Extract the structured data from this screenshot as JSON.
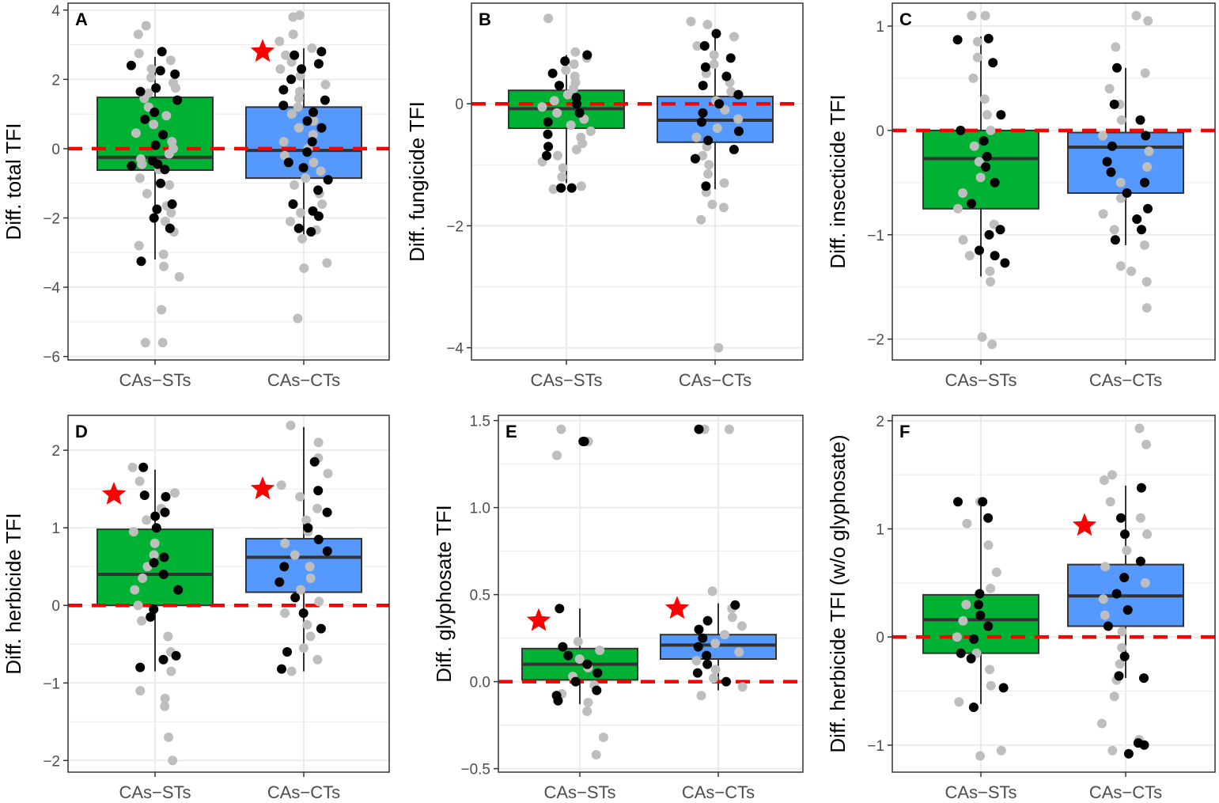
{
  "colors": {
    "green": "#00B233",
    "blue": "#5599FF",
    "zero_line": "#FF0000",
    "star": "#FF0000",
    "grey_point": "#BEBEBE",
    "black_point": "#000000",
    "grid": "#EBEBEB",
    "box_outline": "#333333"
  },
  "chart_data": [
    {
      "panel": "A",
      "type": "box",
      "ylabel": "Diff. total TFI",
      "categories": [
        "CAs−STs",
        "CAs−CTs"
      ],
      "ylim": [
        -6.1,
        4.2
      ],
      "yticks": [
        -6,
        -4,
        -2,
        0,
        2,
        4
      ],
      "yticklabels": [
        "−6",
        "−4",
        "−2",
        "0",
        "2",
        "4"
      ],
      "boxes": [
        {
          "name": "CAs−STs",
          "color": "green",
          "q1": -0.62,
          "median": -0.25,
          "q3": 1.48,
          "whisker_low": -3.2,
          "whisker_high": 2.65,
          "star": false
        },
        {
          "name": "CAs−CTs",
          "color": "blue",
          "q1": -0.85,
          "median": -0.05,
          "q3": 1.2,
          "whisker_low": -2.5,
          "whisker_high": 2.9,
          "star": true,
          "star_y": 2.8
        }
      ],
      "points_grey": [
        [
          [
            -5.6,
            -5.6,
            -4.65,
            -3.7,
            -3.4,
            -3.05,
            -2.8,
            -2.4,
            -2.1,
            -1.85,
            -1.65,
            -1.3,
            -1.05,
            -0.85,
            -0.6,
            -0.45,
            -0.3,
            -0.15,
            0.0,
            0.2,
            0.45,
            0.7,
            0.95,
            1.2,
            1.45,
            1.6,
            1.75,
            1.9,
            2.05,
            2.3,
            2.55,
            2.75,
            3.3,
            3.55
          ]
        ],
        [
          [
            -4.9,
            -3.45,
            -3.3,
            -2.6,
            -2.35,
            -2.1,
            -1.85,
            -1.6,
            -1.3,
            -1.05,
            -0.85,
            -0.65,
            -0.4,
            -0.2,
            0.0,
            0.2,
            0.4,
            0.6,
            0.8,
            1.0,
            1.2,
            1.45,
            1.65,
            1.85,
            2.1,
            2.3,
            2.5,
            2.7,
            2.9,
            3.1,
            3.3,
            3.8,
            3.85
          ]
        ]
      ],
      "points_black": [
        [
          [
            -3.25,
            -2.3,
            -2.0,
            -1.75,
            -1.6,
            -1.0,
            -0.6,
            -0.5,
            -0.45,
            -0.35,
            0.1,
            0.4,
            0.85,
            1.05,
            1.4,
            1.65,
            1.75,
            2.15,
            2.25,
            2.4,
            2.8
          ]
        ],
        [
          [
            -2.4,
            -2.3,
            -1.95,
            -1.8,
            -1.6,
            -1.2,
            -0.9,
            -0.55,
            -0.4,
            -0.1,
            0.2,
            0.6,
            0.8,
            1.05,
            1.25,
            1.4,
            1.7,
            2.0,
            2.3,
            2.45,
            2.7,
            2.8
          ]
        ]
      ]
    },
    {
      "panel": "B",
      "type": "box",
      "ylabel": "Diff. fungicide TFI",
      "categories": [
        "CAs−STs",
        "CAs−CTs"
      ],
      "ylim": [
        -4.2,
        1.65
      ],
      "yticks": [
        -4,
        -2,
        0
      ],
      "yticklabels": [
        "−4",
        "−2",
        "0"
      ],
      "boxes": [
        {
          "name": "CAs−STs",
          "color": "green",
          "q1": -0.4,
          "median": -0.08,
          "q3": 0.22,
          "whisker_low": -1.3,
          "whisker_high": 0.8,
          "star": false
        },
        {
          "name": "CAs−CTs",
          "color": "blue",
          "q1": -0.63,
          "median": -0.27,
          "q3": 0.12,
          "whisker_low": -1.4,
          "whisker_high": 1.1,
          "star": false
        }
      ],
      "points_grey": [
        [
          [
            -1.4,
            -1.35,
            -1.2,
            -1.05,
            -0.95,
            -0.85,
            -0.75,
            -0.65,
            -0.55,
            -0.45,
            -0.35,
            -0.25,
            -0.15,
            -0.05,
            0.05,
            0.15,
            0.25,
            0.35,
            0.45,
            0.55,
            0.65,
            0.75,
            0.85,
            1.4
          ]
        ],
        [
          [
            -4.0,
            -1.9,
            -1.7,
            -1.65,
            -1.45,
            -1.3,
            -1.15,
            -1.0,
            -0.85,
            -0.7,
            -0.55,
            -0.4,
            -0.25,
            -0.1,
            0.05,
            0.2,
            0.35,
            0.5,
            0.65,
            0.8,
            0.95,
            1.1,
            1.3,
            1.35
          ]
        ]
      ],
      "points_black": [
        [
          [
            -1.38,
            -1.38,
            -0.85,
            -0.7,
            -0.5,
            -0.3,
            -0.15,
            0.0,
            0.1,
            0.3,
            0.5,
            0.7,
            0.8
          ]
        ],
        [
          [
            -1.35,
            -0.9,
            -0.75,
            -0.6,
            -0.45,
            -0.3,
            -0.15,
            0.0,
            0.15,
            0.3,
            0.45,
            0.6,
            0.75,
            0.95,
            1.15
          ]
        ]
      ]
    },
    {
      "panel": "C",
      "type": "box",
      "ylabel": "Diff. insecticide TFI",
      "categories": [
        "CAs−STs",
        "CAs−CTs"
      ],
      "ylim": [
        -2.2,
        1.22
      ],
      "yticks": [
        -2,
        -1,
        0,
        1
      ],
      "yticklabels": [
        "−2",
        "−1",
        "0",
        "1"
      ],
      "boxes": [
        {
          "name": "CAs−STs",
          "color": "green",
          "q1": -0.75,
          "median": -0.27,
          "q3": 0.0,
          "whisker_low": -1.4,
          "whisker_high": 0.9,
          "star": false
        },
        {
          "name": "CAs−CTs",
          "color": "blue",
          "q1": -0.6,
          "median": -0.16,
          "q3": -0.02,
          "whisker_low": -1.1,
          "whisker_high": 0.6,
          "star": false
        }
      ],
      "points_grey": [
        [
          [
            -2.05,
            -1.98,
            -1.45,
            -1.35,
            -1.2,
            -1.05,
            -0.9,
            -0.75,
            -0.6,
            -0.45,
            -0.3,
            -0.15,
            0.0,
            0.15,
            0.3,
            0.5,
            0.7,
            0.85,
            1.1,
            1.1
          ]
        ],
        [
          [
            -1.7,
            -1.45,
            -1.35,
            -1.3,
            -1.1,
            -0.95,
            -0.8,
            -0.65,
            -0.5,
            -0.35,
            -0.2,
            -0.05,
            0.1,
            0.25,
            0.4,
            0.55,
            0.8,
            1.05,
            1.1
          ]
        ]
      ],
      "points_black": [
        [
          [
            -1.27,
            -1.2,
            -1.15,
            -1.0,
            -0.95,
            -0.7,
            -0.5,
            -0.35,
            -0.25,
            -0.1,
            0.0,
            0.15,
            0.65,
            0.87,
            0.88
          ]
        ],
        [
          [
            -1.05,
            -0.95,
            -0.85,
            -0.75,
            -0.6,
            -0.5,
            -0.4,
            -0.3,
            -0.15,
            -0.05,
            0.1,
            0.25,
            0.6
          ]
        ]
      ]
    },
    {
      "panel": "D",
      "type": "box",
      "ylabel": "Diff. herbicide TFI",
      "categories": [
        "CAs−STs",
        "CAs−CTs"
      ],
      "ylim": [
        -2.15,
        2.45
      ],
      "yticks": [
        -2,
        -1,
        0,
        1,
        2
      ],
      "yticklabels": [
        "−2",
        "−1",
        "0",
        "1",
        "2"
      ],
      "boxes": [
        {
          "name": "CAs−STs",
          "color": "green",
          "q1": 0.0,
          "median": 0.4,
          "q3": 0.98,
          "whisker_low": -0.85,
          "whisker_high": 1.75,
          "star": true,
          "star_y": 1.43
        },
        {
          "name": "CAs−CTs",
          "color": "blue",
          "q1": 0.17,
          "median": 0.62,
          "q3": 0.86,
          "whisker_low": -0.85,
          "whisker_high": 2.3,
          "star": true,
          "star_y": 1.5
        }
      ],
      "points_grey": [
        [
          [
            -2.0,
            -1.7,
            -1.3,
            -1.2,
            -1.1,
            -0.85,
            -0.6,
            -0.4,
            -0.2,
            0.0,
            0.2,
            0.35,
            0.5,
            0.65,
            0.8,
            0.95,
            1.1,
            1.25,
            1.45,
            1.6,
            1.78
          ]
        ],
        [
          [
            -0.85,
            -0.7,
            -0.55,
            -0.4,
            -0.25,
            -0.1,
            0.05,
            0.2,
            0.35,
            0.5,
            0.65,
            0.8,
            0.95,
            1.1,
            1.25,
            1.4,
            1.55,
            1.7,
            1.9,
            2.1,
            2.32
          ]
        ]
      ],
      "points_black": [
        [
          [
            -0.8,
            -0.7,
            -0.65,
            -0.15,
            -0.05,
            0.2,
            0.4,
            0.55,
            0.62,
            1.0,
            1.15,
            1.2,
            1.4,
            1.42,
            1.78
          ]
        ],
        [
          [
            -0.82,
            -0.6,
            -0.3,
            -0.1,
            0.1,
            0.3,
            0.5,
            0.7,
            0.85,
            1.0,
            1.2,
            1.48,
            1.85
          ]
        ]
      ]
    },
    {
      "panel": "E",
      "type": "box",
      "ylabel": "Diff. glyphosate TFI",
      "categories": [
        "CAs−STs",
        "CAs−CTs"
      ],
      "ylim": [
        -0.52,
        1.53
      ],
      "yticks": [
        -0.5,
        0.0,
        0.5,
        1.0,
        1.5
      ],
      "yticklabels": [
        "−0.5",
        "0.0",
        "0.5",
        "1.0",
        "1.5"
      ],
      "boxes": [
        {
          "name": "CAs−STs",
          "color": "green",
          "q1": 0.01,
          "median": 0.1,
          "q3": 0.19,
          "whisker_low": -0.13,
          "whisker_high": 0.42,
          "star": true,
          "star_y": 0.35
        },
        {
          "name": "CAs−CTs",
          "color": "blue",
          "q1": 0.13,
          "median": 0.21,
          "q3": 0.27,
          "whisker_low": -0.05,
          "whisker_high": 0.45,
          "star": true,
          "star_y": 0.42
        }
      ],
      "points_grey": [
        [
          [
            -0.42,
            -0.32,
            -0.17,
            -0.12,
            -0.07,
            -0.02,
            0.03,
            0.08,
            0.13,
            0.18,
            0.23,
            1.3,
            1.38,
            1.45
          ]
        ],
        [
          [
            -0.08,
            -0.03,
            0.02,
            0.07,
            0.12,
            0.17,
            0.22,
            0.27,
            0.32,
            0.37,
            0.42,
            0.52,
            1.45,
            1.45
          ]
        ]
      ],
      "points_black": [
        [
          [
            -0.11,
            -0.08,
            -0.05,
            0.0,
            0.05,
            0.1,
            0.15,
            0.2,
            0.42,
            1.38,
            1.38
          ]
        ],
        [
          [
            0.0,
            0.05,
            0.1,
            0.15,
            0.2,
            0.25,
            0.3,
            0.35,
            0.44,
            1.45
          ]
        ]
      ]
    },
    {
      "panel": "F",
      "type": "box",
      "ylabel": "Diff. herbicide TFI (w/o glyphosate)",
      "categories": [
        "CAs−STs",
        "CAs−CTs"
      ],
      "ylim": [
        -1.25,
        2.05
      ],
      "yticks": [
        -1,
        0,
        1,
        2
      ],
      "yticklabels": [
        "−1",
        "0",
        "1",
        "2"
      ],
      "boxes": [
        {
          "name": "CAs−STs",
          "color": "green",
          "q1": -0.15,
          "median": 0.16,
          "q3": 0.39,
          "whisker_low": -0.62,
          "whisker_high": 1.25,
          "star": false
        },
        {
          "name": "CAs−CTs",
          "color": "blue",
          "q1": 0.1,
          "median": 0.38,
          "q3": 0.67,
          "whisker_low": -0.38,
          "whisker_high": 1.4,
          "star": true,
          "star_y": 1.03
        }
      ],
      "points_grey": [
        [
          [
            -1.1,
            -1.05,
            -0.6,
            -0.45,
            -0.3,
            -0.15,
            0.0,
            0.15,
            0.3,
            0.45,
            0.6,
            0.85,
            1.05,
            1.25
          ]
        ],
        [
          [
            -1.05,
            -0.95,
            -0.8,
            -0.55,
            -0.4,
            -0.25,
            -0.1,
            0.05,
            0.2,
            0.35,
            0.5,
            0.65,
            0.8,
            0.95,
            1.1,
            1.25,
            1.45,
            1.5,
            1.78,
            1.93
          ]
        ]
      ],
      "points_black": [
        [
          [
            -0.65,
            -0.47,
            -0.2,
            -0.15,
            -0.02,
            0.1,
            0.2,
            0.3,
            0.4,
            1.1,
            1.25,
            1.25
          ]
        ],
        [
          [
            -1.08,
            -1.0,
            -0.98,
            -0.38,
            -0.36,
            -0.18,
            0.1,
            0.25,
            0.4,
            0.55,
            0.7,
            0.95,
            1.1,
            1.38
          ]
        ]
      ]
    }
  ]
}
